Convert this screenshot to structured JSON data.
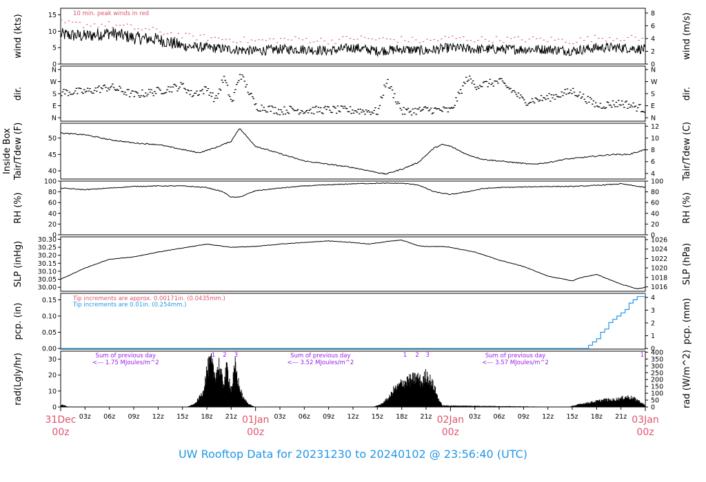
{
  "footer_title": "UW Rooftop Data for 20231230  to  20240102 @ 23:56:40  (UTC)",
  "colors": {
    "red": "#df536b",
    "blue": "#2297e6",
    "purple": "#9a1ce6",
    "black": "#000000"
  },
  "time_axis": {
    "date_labels": [
      {
        "day": "31Dec",
        "hour": "00z",
        "t": 0
      },
      {
        "day": "01Jan",
        "hour": "00z",
        "t": 24
      },
      {
        "day": "02Jan",
        "hour": "00z",
        "t": 48
      },
      {
        "day": "03Jan",
        "hour": "00z",
        "t": 72
      }
    ],
    "hour_ticks": [
      {
        "t": 3,
        "label": "03z"
      },
      {
        "t": 6,
        "label": "06z"
      },
      {
        "t": 9,
        "label": "09z"
      },
      {
        "t": 12,
        "label": "12z"
      },
      {
        "t": 15,
        "label": "15z"
      },
      {
        "t": 18,
        "label": "18z"
      },
      {
        "t": 21,
        "label": "21z"
      },
      {
        "t": 27,
        "label": "03z"
      },
      {
        "t": 30,
        "label": "06z"
      },
      {
        "t": 33,
        "label": "09z"
      },
      {
        "t": 36,
        "label": "12z"
      },
      {
        "t": 39,
        "label": "15z"
      },
      {
        "t": 42,
        "label": "18z"
      },
      {
        "t": 45,
        "label": "21z"
      },
      {
        "t": 51,
        "label": "03z"
      },
      {
        "t": 54,
        "label": "06z"
      },
      {
        "t": 57,
        "label": "09z"
      },
      {
        "t": 60,
        "label": "12z"
      },
      {
        "t": 63,
        "label": "15z"
      },
      {
        "t": 66,
        "label": "18z"
      },
      {
        "t": 69,
        "label": "21z"
      }
    ]
  },
  "chart_data": [
    {
      "id": "wind",
      "type": "line",
      "ylabel_left": "wind (kts)",
      "ylabel_right": "wind (m/s)",
      "yticks_left": [
        0,
        5,
        10,
        15
      ],
      "yticks_right": [
        0,
        2,
        4,
        6,
        8
      ],
      "ylim": [
        0,
        17
      ],
      "note": "10 min. peak winds in red",
      "series": [
        {
          "name": "wind speed",
          "x": [
            0,
            3,
            6,
            9,
            12,
            15,
            18,
            21,
            24,
            27,
            30,
            33,
            36,
            39,
            42,
            45,
            48,
            51,
            54,
            57,
            60,
            63,
            66,
            69,
            72
          ],
          "values": [
            9,
            8.5,
            9.5,
            8,
            7.5,
            5.5,
            5,
            4.5,
            4,
            4.5,
            4.5,
            4,
            5,
            4,
            4.5,
            4,
            5,
            4.5,
            4.5,
            4.5,
            4.5,
            4,
            5,
            5,
            4.5
          ]
        },
        {
          "name": "10 min. peak winds",
          "x": [
            0,
            3,
            6,
            9,
            12,
            15,
            18,
            21,
            24,
            27,
            30,
            33,
            36,
            39,
            42,
            45,
            48,
            51,
            54,
            57,
            60,
            63,
            66,
            69,
            72
          ],
          "values": [
            12.5,
            12,
            12,
            11,
            10,
            8.5,
            8,
            7.5,
            7,
            7.5,
            7.5,
            7,
            8,
            7.5,
            7.5,
            7,
            8,
            7.5,
            7.5,
            7.5,
            7.5,
            7,
            8,
            8,
            7.5
          ]
        }
      ]
    },
    {
      "id": "dir",
      "type": "scatter",
      "ylabel_left": "dir.",
      "ylabel_right": "dir.",
      "tick_labels": [
        "N",
        "E",
        "S",
        "W",
        "N"
      ],
      "ylim": [
        0,
        360
      ],
      "series": [
        {
          "name": "wind direction (deg)",
          "x": [
            0,
            3,
            6,
            9,
            12,
            15,
            16,
            18,
            19,
            20,
            21,
            22,
            24,
            25,
            27,
            28,
            30,
            33,
            36,
            39,
            40,
            42,
            45,
            48,
            50,
            51,
            54,
            56,
            57,
            60,
            63,
            66,
            69,
            72
          ],
          "values": [
            190,
            195,
            230,
            170,
            200,
            240,
            175,
            215,
            130,
            300,
            110,
            330,
            80,
            75,
            50,
            60,
            55,
            60,
            55,
            45,
            280,
            45,
            60,
            55,
            300,
            240,
            270,
            180,
            120,
            150,
            200,
            90,
            110,
            60
          ]
        }
      ]
    },
    {
      "id": "temp",
      "type": "line",
      "ylabel_left": "Tair/Tdew (F)",
      "ylabel_left2": "Inside Box",
      "ylabel_right": "Tair/Tdew (C)",
      "yticks_left": [
        40,
        45,
        50
      ],
      "yticks_right": [
        4,
        6,
        8,
        10,
        12
      ],
      "ylim": [
        37.5,
        54.5
      ],
      "series": [
        {
          "name": "temperature",
          "x": [
            0,
            3,
            6,
            9,
            12,
            15,
            17,
            19,
            21,
            22,
            24,
            26,
            28,
            30,
            33,
            36,
            38,
            40,
            42,
            44,
            46,
            47,
            48,
            50,
            52,
            54,
            56,
            58,
            60,
            62,
            64,
            66,
            68,
            70,
            72
          ],
          "values": [
            51.5,
            51,
            49.5,
            48.5,
            48,
            46.5,
            45.5,
            47,
            49,
            53,
            47.5,
            46,
            44.5,
            43,
            42,
            41,
            40,
            39,
            40.5,
            42.5,
            47,
            48,
            47.5,
            45,
            43.5,
            43,
            42.5,
            42,
            42.5,
            43.5,
            44,
            44.5,
            45,
            45,
            46.5
          ]
        }
      ]
    },
    {
      "id": "rh",
      "type": "line",
      "ylabel_left": "RH (%)",
      "ylabel_right": "RH (%)",
      "yticks_left": [
        0,
        20,
        40,
        60,
        80,
        100
      ],
      "yticks_right": [
        0,
        20,
        40,
        60,
        80,
        100
      ],
      "ylim": [
        0,
        100
      ],
      "series": [
        {
          "name": "relative humidity",
          "x": [
            0,
            3,
            6,
            9,
            12,
            15,
            18,
            20,
            21,
            22,
            24,
            27,
            30,
            33,
            36,
            39,
            42,
            44,
            46,
            48,
            50,
            52,
            54,
            57,
            60,
            63,
            66,
            69,
            72
          ],
          "values": [
            87,
            84,
            87,
            90,
            91,
            91,
            88,
            80,
            70,
            70,
            82,
            87,
            91,
            93,
            95,
            96,
            96,
            93,
            80,
            75,
            80,
            86,
            88,
            89,
            90,
            90,
            92,
            95,
            88
          ]
        }
      ]
    },
    {
      "id": "slp",
      "type": "line",
      "ylabel_left": "SLP (inHg)",
      "ylabel_right": "SLP (hPa)",
      "yticks_left": [
        "30.00",
        "30.05",
        "30.10",
        "30.15",
        "30.20",
        "30.25",
        "30.30"
      ],
      "yticks_right": [
        1016,
        1018,
        1020,
        1022,
        1024,
        1026
      ],
      "ylim": [
        29.975,
        30.315
      ],
      "series": [
        {
          "name": "sea level pressure",
          "x": [
            0,
            3,
            6,
            9,
            12,
            15,
            18,
            21,
            24,
            27,
            30,
            33,
            36,
            38,
            40,
            42,
            44,
            45,
            47,
            48,
            51,
            54,
            57,
            60,
            63,
            64,
            66,
            67,
            69,
            71,
            72
          ],
          "values": [
            30.05,
            30.12,
            30.175,
            30.19,
            30.22,
            30.245,
            30.27,
            30.25,
            30.255,
            30.27,
            30.28,
            30.29,
            30.28,
            30.27,
            30.285,
            30.295,
            30.26,
            30.255,
            30.255,
            30.25,
            30.22,
            30.17,
            30.13,
            30.07,
            30.04,
            30.06,
            30.08,
            30.06,
            30.02,
            29.99,
            30.0
          ]
        }
      ]
    },
    {
      "id": "pcp",
      "type": "line",
      "ylabel_left": "pcp. (in)",
      "ylabel_right": "pcp. (mm)",
      "yticks_left": [
        "0.00",
        "0.05",
        "0.10",
        "0.15"
      ],
      "yticks_right": [
        0,
        1,
        2,
        3,
        4
      ],
      "ylim": [
        -0.002,
        0.17
      ],
      "note_red": "Tip increments are approx. 0.00171in. (0.0435mm.)",
      "note_blue": "Tip increments are 0.01in. (0.254mm.)",
      "series": [
        {
          "name": "precipitation",
          "x": [
            0,
            64.2,
            65,
            65.5,
            66,
            66.5,
            67,
            67.5,
            68,
            68.5,
            69,
            69.5,
            70,
            70.5,
            71,
            72
          ],
          "values": [
            0,
            0,
            0.01,
            0.02,
            0.03,
            0.05,
            0.06,
            0.08,
            0.09,
            0.1,
            0.11,
            0.12,
            0.14,
            0.15,
            0.16,
            0.17
          ]
        }
      ]
    },
    {
      "id": "rad",
      "type": "area",
      "ylabel_left": "rad(Lgly/hr)",
      "ylabel_right": "rad (W/m^2)",
      "yticks_left": [
        0,
        10,
        20,
        30
      ],
      "yticks_right": [
        0,
        50,
        100,
        150,
        200,
        250,
        300,
        350,
        400
      ],
      "ylim": [
        0,
        35
      ],
      "annotations": [
        {
          "t": 8,
          "line1": "Sum of previous day",
          "line2": "<--- 1.75 MJoules/m^2"
        },
        {
          "t": 32,
          "line1": "Sum of previous day",
          "line2": "<--- 3.52 MJoules/m^2"
        },
        {
          "t": 56,
          "line1": "Sum of previous day",
          "line2": "<--- 3.57 MJoules/m^2"
        }
      ],
      "markers": [
        {
          "t": 18.8,
          "label": "1"
        },
        {
          "t": 20.2,
          "label": "2"
        },
        {
          "t": 21.6,
          "label": "3"
        },
        {
          "t": 42.4,
          "label": "1"
        },
        {
          "t": 43.9,
          "label": "2"
        },
        {
          "t": 45.2,
          "label": "3"
        },
        {
          "t": 71.6,
          "label": "1"
        }
      ],
      "series": [
        {
          "name": "solar radiation",
          "x": [
            0,
            0.5,
            1,
            15.5,
            16.5,
            17,
            17.5,
            18,
            18.5,
            19,
            19.5,
            20,
            20.5,
            21,
            21.5,
            22,
            22.5,
            23,
            23.5,
            24,
            38.5,
            39.5,
            40.5,
            41,
            41.5,
            42,
            42.5,
            43,
            43.5,
            44,
            44.5,
            45,
            45.5,
            46,
            46.5,
            47,
            62.5,
            64,
            65,
            66,
            67,
            68,
            69,
            69.5,
            70,
            71,
            71.5,
            72
          ],
          "values": [
            1.5,
            1,
            0,
            0,
            2,
            6,
            10,
            26,
            32,
            22,
            30,
            16,
            28,
            12,
            29,
            14,
            6,
            3,
            1,
            0,
            0,
            2,
            7,
            12,
            14,
            17,
            18,
            19,
            20,
            21,
            17,
            23,
            19,
            14,
            6,
            1,
            0,
            2,
            3,
            4,
            5,
            5,
            6,
            7,
            7,
            5,
            3,
            1
          ]
        }
      ]
    }
  ]
}
